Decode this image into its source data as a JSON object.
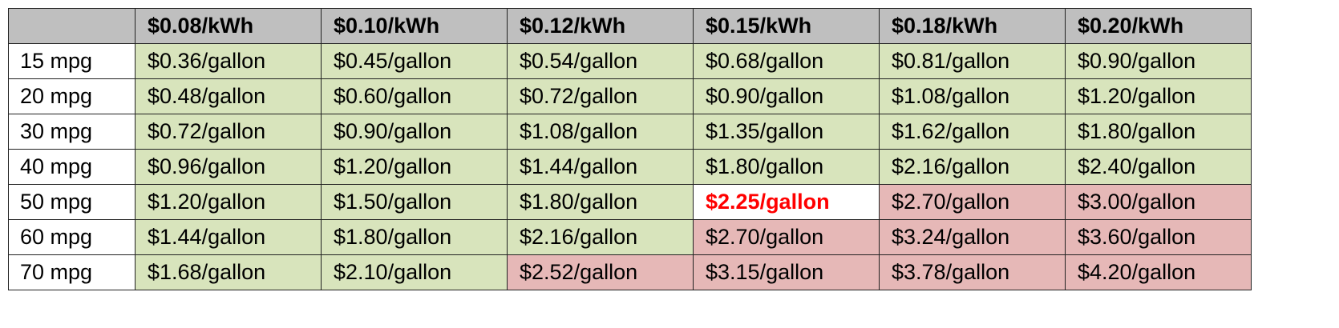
{
  "table": {
    "header": [
      "$0.08/kWh",
      "$0.10/kWh",
      "$0.12/kWh",
      "$0.15/kWh",
      "$0.18/kWh",
      "$0.20/kWh"
    ],
    "rows": [
      [
        "15 mpg",
        "$0.36/gallon",
        "$0.45/gallon",
        "$0.54/gallon",
        "$0.68/gallon",
        "$0.81/gallon",
        "$0.90/gallon"
      ],
      [
        "20 mpg",
        "$0.48/gallon",
        "$0.60/gallon",
        "$0.72/gallon",
        "$0.90/gallon",
        "$1.08/gallon",
        "$1.20/gallon"
      ],
      [
        "30 mpg",
        "$0.72/gallon",
        "$0.90/gallon",
        "$1.08/gallon",
        "$1.35/gallon",
        "$1.62/gallon",
        "$1.80/gallon"
      ],
      [
        "40 mpg",
        "$0.96/gallon",
        "$1.20/gallon",
        "$1.44/gallon",
        "$1.80/gallon",
        "$2.16/gallon",
        "$2.40/gallon"
      ],
      [
        "50 mpg",
        "$1.20/gallon",
        "$1.50/gallon",
        "$1.80/gallon",
        "$2.25/gallon",
        "$2.70/gallon",
        "$3.00/gallon"
      ],
      [
        "60 mpg",
        "$1.44/gallon",
        "$1.80/gallon",
        "$2.16/gallon",
        "$2.70/gallon",
        "$3.24/gallon",
        "$3.60/gallon"
      ],
      [
        "70 mpg",
        "$1.68/gallon",
        "$2.10/gallon",
        "$2.52/gallon",
        "$3.15/gallon",
        "$3.78/gallon",
        "$4.20/gallon"
      ]
    ]
  }
}
